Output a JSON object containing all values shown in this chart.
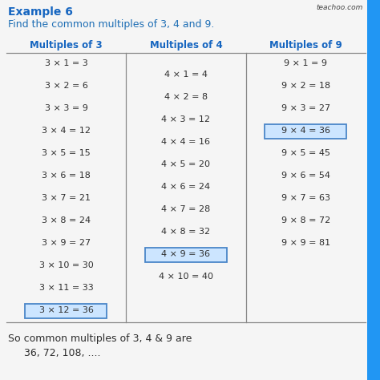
{
  "title_bold": "Example 6",
  "title_normal": "Find the common multiples of 3, 4 and 9.",
  "watermark": "teachoo.com",
  "col1_header": "Multiples of 3",
  "col2_header": "Multiples of 4",
  "col3_header": "Multiples of 9",
  "col1_rows": [
    "3 × 1 = 3",
    "3 × 2 = 6",
    "3 × 3 = 9",
    "3 × 4 = 12",
    "3 × 5 = 15",
    "3 × 6 = 18",
    "3 × 7 = 21",
    "3 × 8 = 24",
    "3 × 9 = 27",
    "3 × 10 = 30",
    "3 × 11 = 33",
    "3 × 12 = 36"
  ],
  "col2_rows": [
    "4 × 1 = 4",
    "4 × 2 = 8",
    "4 × 3 = 12",
    "4 × 4 = 16",
    "4 × 5 = 20",
    "4 × 6 = 24",
    "4 × 7 = 28",
    "4 × 8 = 32",
    "4 × 9 = 36",
    "4 × 10 = 40"
  ],
  "col3_rows": [
    "9 × 1 = 9",
    "9 × 2 = 18",
    "9 × 3 = 27",
    "9 × 4 = 36",
    "9 × 5 = 45",
    "9 × 6 = 54",
    "9 × 7 = 63",
    "9 × 8 = 72",
    "9 × 9 = 81"
  ],
  "col1_highlight_idx": 11,
  "col2_highlight_idx": 8,
  "col3_highlight_idx": 3,
  "highlight_color": "#cce5ff",
  "highlight_border": "#4a86c8",
  "header_color": "#1565c0",
  "title_color": "#1565c0",
  "subtitle_color": "#1e6eb5",
  "footer_line1": "So common multiples of 3, 4 & 9 are",
  "footer_line2": "36, 72, 108, ....",
  "bg_color": "#f5f5f5",
  "text_color": "#2d2d2d",
  "right_bar_color": "#2196f3",
  "watermark_color": "#444444"
}
